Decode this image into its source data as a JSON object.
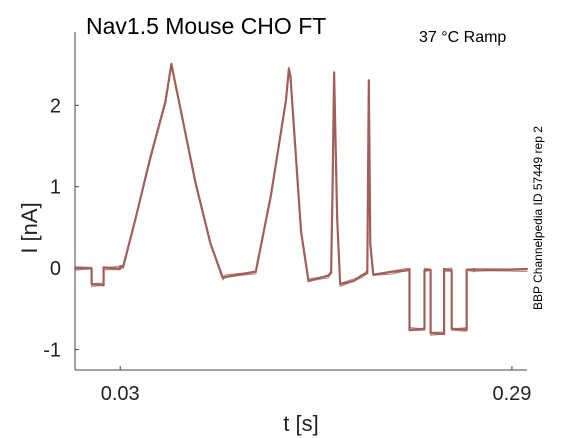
{
  "chart_data": {
    "type": "line",
    "title": "Nav1.5  Mouse  CHO FT",
    "condition": "37 °C  Ramp",
    "side_label": "BBP Channelpedia ID 57449 rep 2",
    "xlabel": "t [s]",
    "ylabel": "I [nA]",
    "x_ticks": [
      0.03,
      0.29
    ],
    "y_ticks": [
      -1,
      0,
      1,
      2
    ],
    "xlim": [
      0.0,
      0.3
    ],
    "ylim": [
      -1.25,
      2.9
    ],
    "grid": false,
    "series_color": "#a0605a",
    "series": [
      {
        "x": [
          0.0,
          0.011,
          0.011,
          0.019,
          0.019,
          0.03,
          0.03,
          0.032,
          0.04,
          0.05,
          0.06,
          0.064,
          0.065,
          0.07,
          0.08,
          0.09,
          0.098,
          0.1,
          0.12,
          0.13,
          0.14,
          0.142,
          0.143,
          0.15,
          0.155,
          0.168,
          0.17,
          0.171,
          0.172,
          0.174,
          0.176,
          0.185,
          0.19,
          0.194,
          0.195,
          0.196,
          0.198,
          0.21,
          0.22,
          0.222,
          0.222,
          0.232,
          0.232,
          0.236,
          0.236,
          0.245,
          0.245,
          0.25,
          0.25,
          0.26,
          0.26,
          0.265,
          0.265,
          0.3
        ],
        "y": [
          0.0,
          0.0,
          -0.2,
          -0.2,
          0.0,
          0.0,
          0.02,
          0.02,
          0.6,
          1.35,
          2.05,
          2.5,
          2.42,
          1.95,
          1.05,
          0.3,
          -0.12,
          -0.1,
          -0.05,
          0.9,
          2.05,
          2.45,
          2.35,
          0.45,
          -0.15,
          -0.1,
          -0.05,
          1.0,
          2.4,
          0.6,
          -0.2,
          -0.15,
          -0.1,
          -0.05,
          2.3,
          0.3,
          -0.08,
          -0.05,
          -0.02,
          -0.02,
          -0.75,
          -0.75,
          -0.02,
          -0.02,
          -0.8,
          -0.8,
          -0.02,
          -0.02,
          -0.75,
          -0.75,
          -0.02,
          -0.02,
          -0.02,
          -0.02
        ]
      }
    ]
  }
}
